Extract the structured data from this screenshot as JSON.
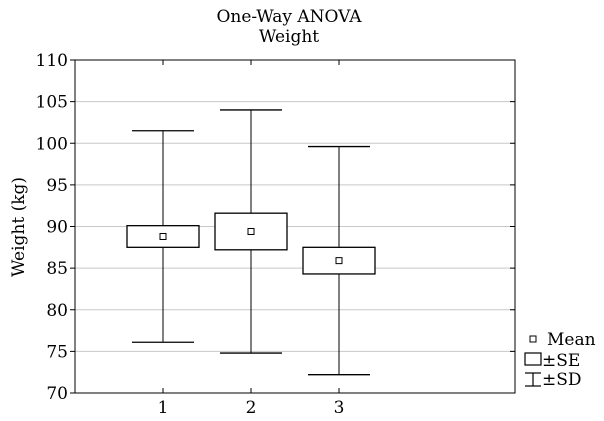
{
  "chart_data": {
    "type": "box",
    "title": "One-Way ANOVA",
    "subtitle": "Weight",
    "xlabel": "",
    "ylabel": "Weight (kg)",
    "ylim": [
      70,
      110
    ],
    "yticks": [
      70,
      75,
      80,
      85,
      90,
      95,
      100,
      105,
      110
    ],
    "xlim": [
      0,
      5
    ],
    "grid": "horizontal",
    "legend_position": "bottom-right",
    "legend": [
      {
        "symbol": "mean-square",
        "label": "Mean"
      },
      {
        "symbol": "box",
        "label": "±SE"
      },
      {
        "symbol": "whisker",
        "label": "±SD"
      }
    ],
    "groups": [
      {
        "label": "1",
        "x": 1,
        "mean": 88.8,
        "se_low": 87.5,
        "se_high": 90.1,
        "sd_low": 76.1,
        "sd_high": 101.5
      },
      {
        "label": "2",
        "x": 2,
        "mean": 89.4,
        "se_low": 87.2,
        "se_high": 91.6,
        "sd_low": 74.8,
        "sd_high": 104.0
      },
      {
        "label": "3",
        "x": 3,
        "mean": 85.9,
        "se_low": 84.3,
        "se_high": 87.5,
        "sd_low": 72.2,
        "sd_high": 99.6
      }
    ]
  }
}
